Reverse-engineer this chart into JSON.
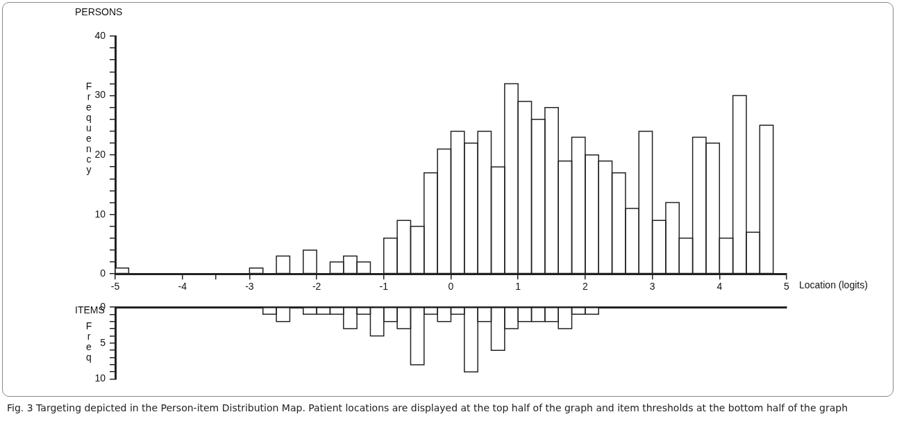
{
  "chart_data": [
    {
      "type": "histogram",
      "title": "PERSONS",
      "ylabel": "Frequency",
      "xlabel": "Location (logits)",
      "bins": [
        -5,
        -4.8,
        -4.6,
        -4.4,
        -4.2,
        -4,
        -3.8,
        -3.6,
        -3.4,
        -3.2,
        -3,
        -2.8,
        -2.6,
        -2.4,
        -2.2,
        -2,
        -1.8,
        -1.6,
        -1.4,
        -1.2,
        -1,
        -0.8,
        -0.6,
        -0.4,
        -0.2,
        0,
        0.2,
        0.4,
        0.6,
        0.8,
        1,
        1.2,
        1.4,
        1.6,
        1.8,
        2,
        2.2,
        2.4,
        2.6,
        2.8,
        3,
        3.2,
        3.4,
        3.6,
        3.8,
        4,
        4.2,
        4.4,
        4.6,
        4.8,
        5
      ],
      "values": [
        1,
        0,
        0,
        0,
        0,
        0,
        0,
        0,
        0,
        0,
        1,
        0,
        3,
        0,
        4,
        0,
        2,
        3,
        2,
        0,
        6,
        9,
        8,
        17,
        21,
        24,
        22,
        24,
        18,
        32,
        29,
        26,
        28,
        19,
        23,
        20,
        19,
        17,
        11,
        24,
        9,
        12,
        6,
        23,
        22,
        6,
        30,
        7,
        25,
        0
      ],
      "color": "#ffffff",
      "xlim": [
        -5,
        5
      ],
      "xticks": [
        -5,
        -4,
        {
          "value": -3.5,
          "label": null
        },
        -3,
        -2,
        -1,
        0,
        1,
        2,
        3,
        4,
        5
      ],
      "ylim": [
        0,
        40
      ],
      "yticks": [
        0,
        {
          "value": 2,
          "label": null
        },
        {
          "value": 4,
          "label": null
        },
        {
          "value": 6,
          "label": null
        },
        {
          "value": 8,
          "label": null
        },
        10,
        {
          "value": 12,
          "label": null
        },
        {
          "value": 14,
          "label": null
        },
        {
          "value": 16,
          "label": null
        },
        {
          "value": 18,
          "label": null
        },
        20,
        {
          "value": 22,
          "label": null
        },
        {
          "value": 24,
          "label": null
        },
        {
          "value": 26,
          "label": null
        },
        {
          "value": 28,
          "label": null
        },
        30,
        {
          "value": 32,
          "label": null
        },
        {
          "value": 34,
          "label": null
        },
        {
          "value": 36,
          "label": null
        },
        {
          "value": 38,
          "label": null
        },
        40
      ],
      "grid": false,
      "legend": false
    },
    {
      "type": "histogram",
      "title": "ITEMS",
      "ylabel": "Freq",
      "bins": [
        -5,
        -4.8,
        -4.6,
        -4.4,
        -4.2,
        -4,
        -3.8,
        -3.6,
        -3.4,
        -3.2,
        -3,
        -2.8,
        -2.6,
        -2.4,
        -2.2,
        -2,
        -1.8,
        -1.6,
        -1.4,
        -1.2,
        -1,
        -0.8,
        -0.6,
        -0.4,
        -0.2,
        0,
        0.2,
        0.4,
        0.6,
        0.8,
        1,
        1.2,
        1.4,
        1.6,
        1.8,
        2,
        2.2,
        2.4,
        2.6,
        2.8,
        3,
        3.2,
        3.4,
        3.6,
        3.8,
        4,
        4.2,
        4.4,
        4.6,
        4.8,
        5
      ],
      "values": [
        0,
        0,
        0,
        0,
        0,
        0,
        0,
        0,
        0,
        0,
        0,
        1,
        2,
        0,
        1,
        1,
        1,
        3,
        1,
        4,
        2,
        3,
        8,
        1,
        2,
        1,
        9,
        2,
        6,
        3,
        2,
        2,
        2,
        3,
        1,
        1,
        0,
        0,
        0,
        0,
        0,
        0,
        0,
        0,
        0,
        0,
        0,
        0,
        0,
        0
      ],
      "color": "#ffffff",
      "xlim": [
        -5,
        5
      ],
      "ylim": [
        10,
        0
      ],
      "yticks": [
        0,
        {
          "value": 1,
          "label": null
        },
        {
          "value": 2,
          "label": null
        },
        {
          "value": 3,
          "label": null
        },
        {
          "value": 4,
          "label": null
        },
        5,
        {
          "value": 6,
          "label": null
        },
        {
          "value": 7,
          "label": null
        },
        {
          "value": 8,
          "label": null
        },
        {
          "value": 9,
          "label": null
        },
        10
      ],
      "tick_labels": "y",
      "grid": false,
      "legend": false,
      "annotations": [
        "Fig. 3 Targeting depicted in the Person-item Distribution Map. Patient locations are displayed at the top half of the graph and item thresholds at the bottom half of the graph"
      ]
    }
  ]
}
